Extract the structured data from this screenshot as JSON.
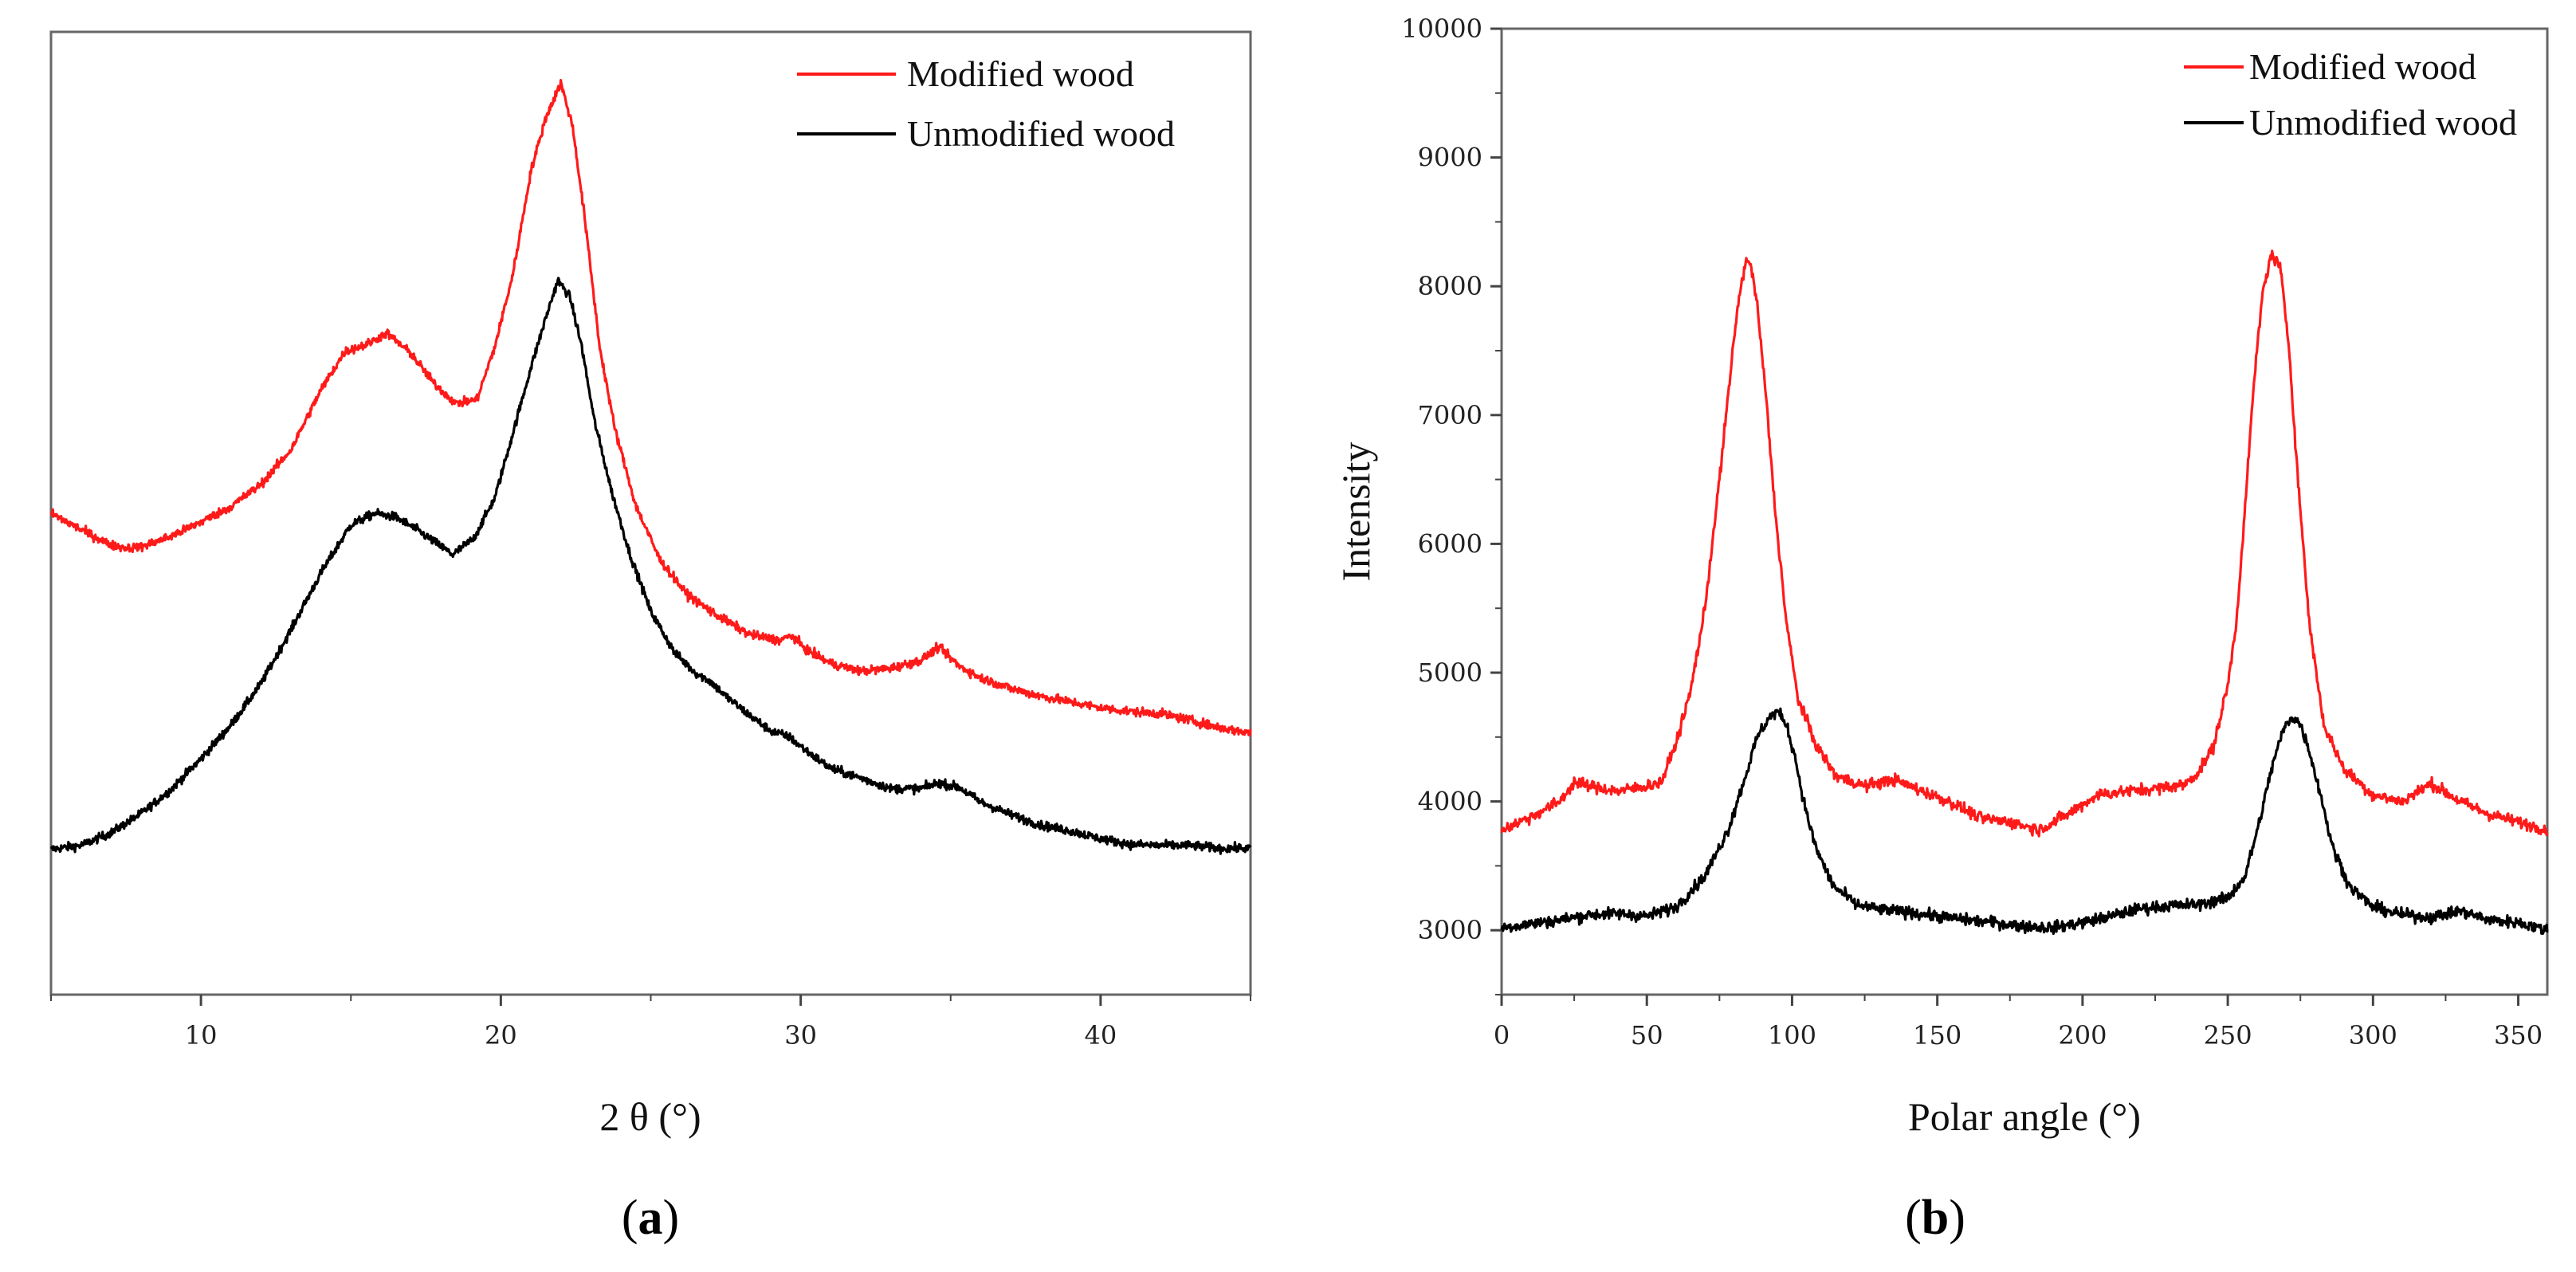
{
  "chart_data": [
    {
      "type": "line",
      "panel_label": "a",
      "title": "",
      "xlabel": "2 θ (°)",
      "ylabel": "",
      "xlim": [
        5,
        45
      ],
      "ylim": [
        0,
        1
      ],
      "xticks": [
        10,
        20,
        30,
        40
      ],
      "yticks": [],
      "grid": false,
      "legend": "top-right",
      "series": [
        {
          "name": "Modified wood",
          "color": "#ff1a1a",
          "x": [
            5,
            6,
            7,
            7.5,
            8,
            9,
            10,
            11,
            12,
            13,
            14,
            14.8,
            15.5,
            16.2,
            17,
            17.8,
            18.5,
            19.2,
            19.8,
            20.4,
            21,
            21.5,
            22,
            22.4,
            22.8,
            23.3,
            23.8,
            24.5,
            25.3,
            26.2,
            27.2,
            28.3,
            29.3,
            29.7,
            30.2,
            31,
            32,
            33,
            34,
            34.6,
            35.3,
            36,
            37,
            38,
            39,
            40,
            41,
            42,
            43,
            44,
            45
          ],
          "y": [
            0.5,
            0.483,
            0.467,
            0.464,
            0.465,
            0.476,
            0.491,
            0.507,
            0.53,
            0.566,
            0.628,
            0.668,
            0.675,
            0.687,
            0.666,
            0.634,
            0.614,
            0.618,
            0.673,
            0.748,
            0.855,
            0.911,
            0.947,
            0.901,
            0.806,
            0.672,
            0.588,
            0.508,
            0.452,
            0.416,
            0.394,
            0.374,
            0.368,
            0.373,
            0.358,
            0.344,
            0.336,
            0.339,
            0.347,
            0.361,
            0.341,
            0.329,
            0.318,
            0.31,
            0.304,
            0.298,
            0.294,
            0.292,
            0.285,
            0.277,
            0.272
          ]
        },
        {
          "name": "Unmodified wood",
          "color": "#000000",
          "x": [
            5,
            6,
            7,
            8,
            9,
            10,
            11,
            12,
            13,
            14,
            15,
            15.8,
            16.5,
            17.2,
            17.8,
            18.4,
            19.1,
            19.8,
            20.4,
            21,
            21.5,
            21.9,
            22.3,
            22.7,
            23.1,
            23.7,
            24.3,
            25,
            25.8,
            26.5,
            27,
            27.5,
            28.3,
            29,
            29.6,
            30.2,
            31,
            32,
            33,
            34,
            34.6,
            35.3,
            36,
            37,
            38,
            39,
            40,
            41,
            42,
            43,
            44,
            45
          ],
          "y": [
            0.151,
            0.155,
            0.168,
            0.188,
            0.213,
            0.245,
            0.28,
            0.323,
            0.379,
            0.438,
            0.488,
            0.5,
            0.496,
            0.483,
            0.47,
            0.457,
            0.474,
            0.516,
            0.583,
            0.651,
            0.703,
            0.742,
            0.725,
            0.673,
            0.599,
            0.522,
            0.458,
            0.398,
            0.355,
            0.334,
            0.325,
            0.31,
            0.29,
            0.274,
            0.268,
            0.253,
            0.235,
            0.225,
            0.214,
            0.214,
            0.22,
            0.215,
            0.2,
            0.187,
            0.176,
            0.17,
            0.162,
            0.156,
            0.155,
            0.155,
            0.152,
            0.152
          ]
        }
      ]
    },
    {
      "type": "line",
      "panel_label": "b",
      "title": "",
      "xlabel": "Polar angle (°)",
      "ylabel": "Intensity",
      "xlim": [
        0,
        360
      ],
      "ylim": [
        2500,
        10000
      ],
      "xticks": [
        0,
        50,
        100,
        150,
        200,
        250,
        300,
        350
      ],
      "yticks": [
        3000,
        4000,
        5000,
        6000,
        7000,
        8000,
        9000,
        10000
      ],
      "grid": false,
      "legend": "top-right",
      "series": [
        {
          "name": "Modified wood",
          "color": "#ff1a1a",
          "x": [
            0,
            10,
            20,
            25,
            30,
            40,
            50,
            55,
            60,
            65,
            70,
            75,
            78,
            81,
            84,
            86,
            88,
            91,
            94,
            98,
            102,
            108,
            115,
            125,
            135,
            145,
            155,
            165,
            175,
            185,
            195,
            205,
            215,
            225,
            235,
            240,
            245,
            250,
            253,
            256,
            259,
            262,
            265,
            268,
            271,
            274,
            278,
            283,
            290,
            300,
            310,
            320,
            330,
            340,
            350,
            360
          ],
          "y": [
            3780,
            3880,
            4000,
            4150,
            4120,
            4080,
            4120,
            4150,
            4450,
            4850,
            5500,
            6500,
            7150,
            7800,
            8200,
            8150,
            7850,
            7150,
            6300,
            5400,
            4800,
            4450,
            4200,
            4120,
            4170,
            4080,
            3990,
            3870,
            3840,
            3780,
            3900,
            4050,
            4080,
            4100,
            4130,
            4230,
            4420,
            4900,
            5400,
            6300,
            7250,
            7950,
            8250,
            8150,
            7550,
            6550,
            5400,
            4600,
            4250,
            4050,
            4000,
            4140,
            4000,
            3900,
            3840,
            3780
          ]
        },
        {
          "name": "Unmodified wood",
          "color": "#000000",
          "x": [
            0,
            10,
            20,
            30,
            40,
            50,
            60,
            70,
            78,
            84,
            88,
            92,
            95,
            98,
            101,
            104,
            108,
            114,
            122,
            130,
            140,
            150,
            160,
            170,
            180,
            190,
            200,
            210,
            220,
            230,
            240,
            250,
            256,
            261,
            265,
            269,
            272,
            275,
            278,
            282,
            286,
            292,
            300,
            310,
            320,
            330,
            340,
            350,
            360
          ],
          "y": [
            3020,
            3050,
            3080,
            3120,
            3130,
            3110,
            3180,
            3420,
            3780,
            4200,
            4500,
            4650,
            4700,
            4600,
            4350,
            4000,
            3650,
            3350,
            3200,
            3160,
            3140,
            3110,
            3080,
            3060,
            3030,
            3020,
            3060,
            3110,
            3170,
            3190,
            3200,
            3250,
            3420,
            3850,
            4250,
            4550,
            4660,
            4600,
            4400,
            4050,
            3650,
            3340,
            3180,
            3120,
            3100,
            3150,
            3080,
            3060,
            3000
          ]
        }
      ]
    }
  ]
}
